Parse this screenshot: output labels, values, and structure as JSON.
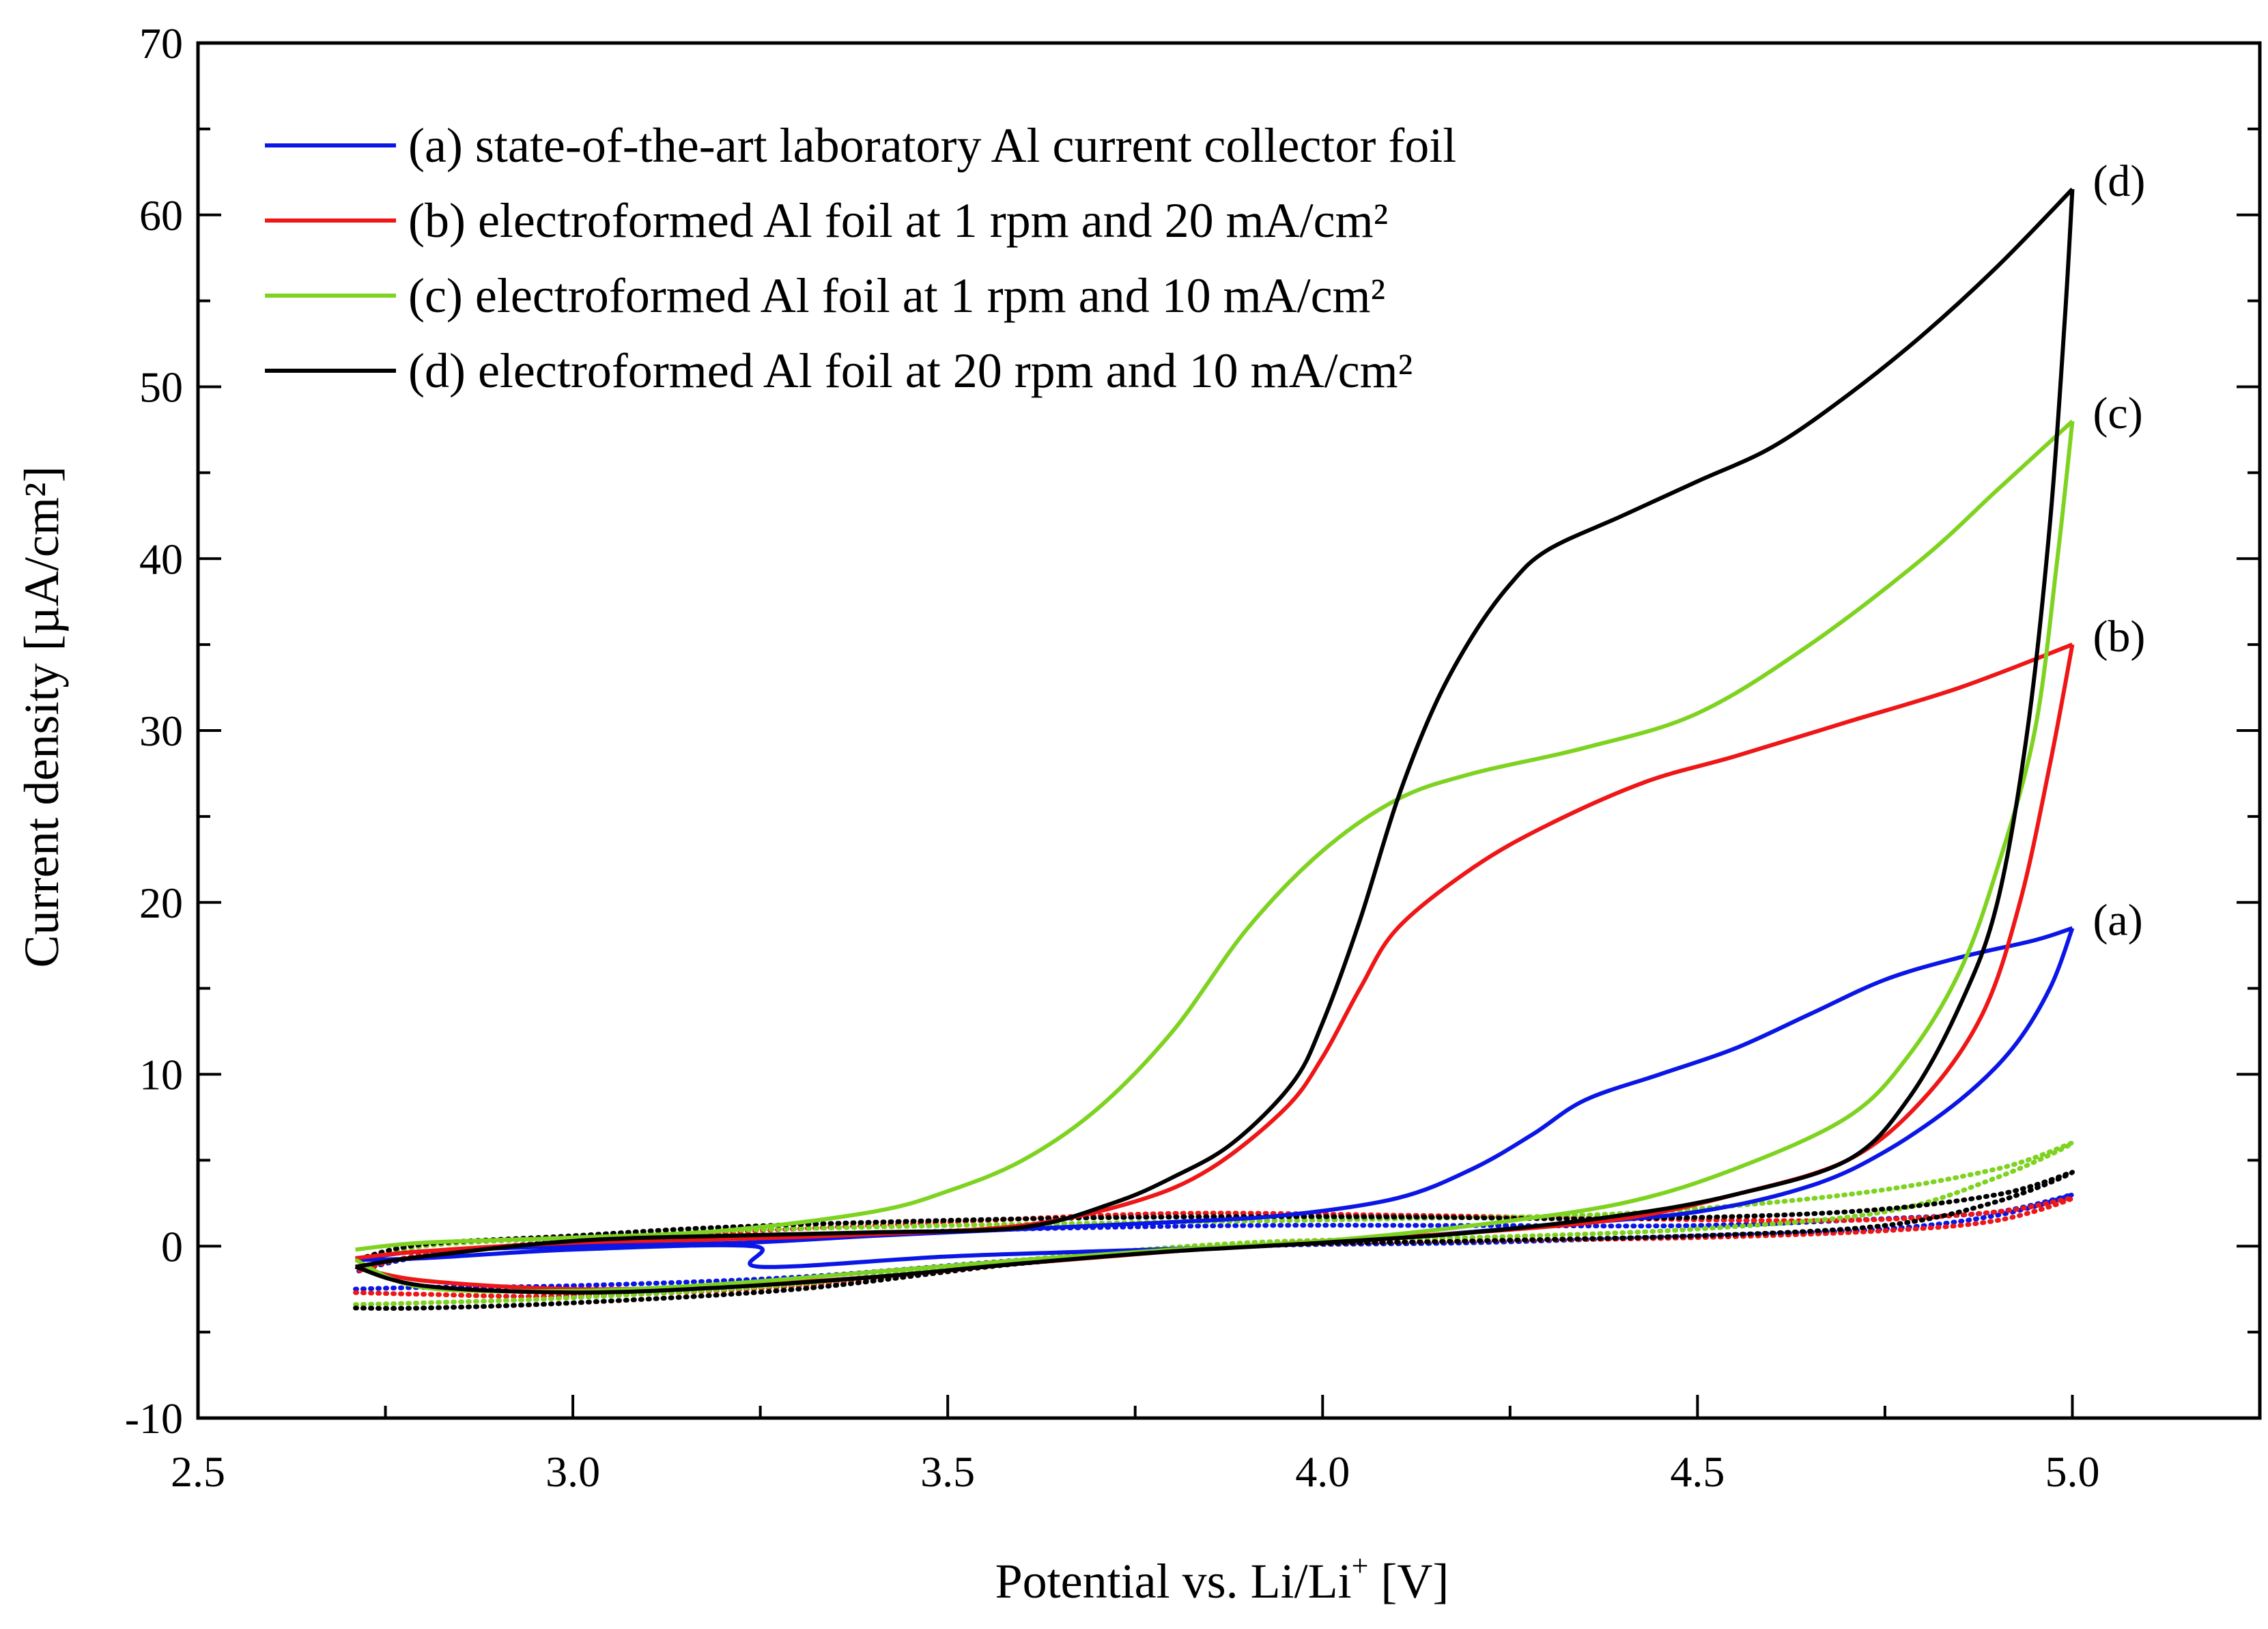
{
  "chart_data": {
    "type": "line",
    "title": "",
    "xlabel_main": "Potential vs. Li/Li",
    "xlabel_sup": "+",
    "xlabel_tail": " [V]",
    "ylabel": "Current density [µA/cm²]",
    "xlim": [
      2.5,
      5.25
    ],
    "ylim": [
      -10,
      70
    ],
    "xticks": [
      2.5,
      3.0,
      3.5,
      4.0,
      4.5,
      5.0
    ],
    "xtick_labels": [
      "2.5",
      "3.0",
      "3.5",
      "4.0",
      "4.5",
      "5.0"
    ],
    "yticks": [
      -10,
      0,
      10,
      20,
      30,
      40,
      50,
      60,
      70
    ],
    "ytick_labels": [
      "-10",
      "0",
      "10",
      "20",
      "30",
      "40",
      "50",
      "60",
      "70"
    ],
    "legend_position": "top-left",
    "grid": false,
    "series": [
      {
        "id": "a",
        "name": "(a) state-of-the-art laboratory Al current collector foil",
        "end_label": "(a)",
        "color": "#0a16e6",
        "forward": [
          [
            2.71,
            -0.8
          ],
          [
            2.8,
            -0.3
          ],
          [
            3.0,
            0.0
          ],
          [
            3.23,
            0.2
          ],
          [
            3.4,
            0.6
          ],
          [
            3.6,
            1.0
          ],
          [
            3.8,
            1.4
          ],
          [
            3.95,
            1.8
          ],
          [
            4.1,
            2.8
          ],
          [
            4.2,
            4.5
          ],
          [
            4.28,
            6.5
          ],
          [
            4.35,
            8.5
          ],
          [
            4.45,
            10.0
          ],
          [
            4.55,
            11.5
          ],
          [
            4.65,
            13.5
          ],
          [
            4.75,
            15.5
          ],
          [
            4.85,
            16.8
          ],
          [
            4.95,
            17.8
          ],
          [
            5.0,
            18.5
          ]
        ],
        "reverse": [
          [
            5.0,
            18.5
          ],
          [
            4.97,
            15.0
          ],
          [
            4.92,
            11.5
          ],
          [
            4.85,
            8.5
          ],
          [
            4.75,
            5.5
          ],
          [
            4.65,
            3.5
          ],
          [
            4.5,
            2.0
          ],
          [
            4.3,
            1.2
          ],
          [
            4.1,
            0.5
          ],
          [
            3.9,
            0.0
          ],
          [
            3.7,
            -0.3
          ],
          [
            3.5,
            -0.6
          ],
          [
            3.25,
            -1.2
          ],
          [
            3.24,
            0.0
          ],
          [
            3.0,
            -0.2
          ],
          [
            2.8,
            -0.7
          ],
          [
            2.71,
            -0.8
          ]
        ],
        "dotted": [
          [
            2.71,
            -2.5
          ],
          [
            2.8,
            -2.4
          ],
          [
            3.0,
            -2.3
          ],
          [
            3.3,
            -1.8
          ],
          [
            3.6,
            -0.8
          ],
          [
            3.9,
            0.0
          ],
          [
            4.2,
            0.2
          ],
          [
            4.5,
            0.6
          ],
          [
            4.75,
            1.0
          ],
          [
            4.9,
            1.8
          ],
          [
            5.0,
            3.0
          ],
          [
            4.9,
            2.0
          ],
          [
            4.75,
            1.6
          ],
          [
            4.5,
            1.2
          ],
          [
            4.2,
            1.2
          ],
          [
            3.9,
            1.2
          ],
          [
            3.6,
            1.0
          ],
          [
            3.3,
            0.6
          ],
          [
            3.0,
            0.3
          ],
          [
            2.8,
            -0.6
          ],
          [
            2.71,
            -1.5
          ]
        ]
      },
      {
        "id": "b",
        "name": "(b) electroformed Al foil at 1 rpm and 20 mA/cm²",
        "end_label": "(b)",
        "color": "#ee1616",
        "forward": [
          [
            2.71,
            -0.7
          ],
          [
            2.8,
            -0.3
          ],
          [
            3.0,
            0.2
          ],
          [
            3.2,
            0.4
          ],
          [
            3.4,
            0.7
          ],
          [
            3.6,
            1.2
          ],
          [
            3.75,
            2.6
          ],
          [
            3.85,
            4.5
          ],
          [
            3.95,
            8.0
          ],
          [
            4.0,
            11.0
          ],
          [
            4.05,
            15.0
          ],
          [
            4.1,
            18.5
          ],
          [
            4.2,
            22.0
          ],
          [
            4.3,
            24.5
          ],
          [
            4.43,
            27.0
          ],
          [
            4.55,
            28.5
          ],
          [
            4.7,
            30.5
          ],
          [
            4.85,
            32.5
          ],
          [
            5.0,
            35.0
          ]
        ],
        "reverse": [
          [
            5.0,
            35.0
          ],
          [
            4.97,
            28.0
          ],
          [
            4.93,
            20.0
          ],
          [
            4.88,
            13.5
          ],
          [
            4.8,
            8.5
          ],
          [
            4.7,
            5.0
          ],
          [
            4.55,
            3.0
          ],
          [
            4.4,
            1.6
          ],
          [
            4.2,
            0.8
          ],
          [
            4.0,
            0.3
          ],
          [
            3.8,
            -0.3
          ],
          [
            3.6,
            -1.0
          ],
          [
            3.4,
            -1.8
          ],
          [
            3.2,
            -2.3
          ],
          [
            3.0,
            -2.5
          ],
          [
            2.8,
            -2.0
          ],
          [
            2.71,
            -1.2
          ]
        ],
        "dotted": [
          [
            2.71,
            -2.7
          ],
          [
            2.8,
            -2.8
          ],
          [
            3.0,
            -2.9
          ],
          [
            3.3,
            -2.3
          ],
          [
            3.6,
            -1.0
          ],
          [
            3.9,
            0.0
          ],
          [
            4.2,
            0.3
          ],
          [
            4.5,
            0.5
          ],
          [
            4.75,
            0.9
          ],
          [
            4.9,
            1.5
          ],
          [
            5.0,
            2.8
          ],
          [
            4.9,
            2.0
          ],
          [
            4.7,
            1.5
          ],
          [
            4.4,
            1.6
          ],
          [
            4.1,
            1.8
          ],
          [
            3.8,
            1.9
          ],
          [
            3.5,
            1.4
          ],
          [
            3.2,
            0.8
          ],
          [
            3.0,
            0.3
          ],
          [
            2.8,
            -0.5
          ],
          [
            2.71,
            -1.5
          ]
        ]
      },
      {
        "id": "c",
        "name": "(c) electroformed Al foil at 1 rpm and 10 mA/cm²",
        "end_label": "(c)",
        "color": "#7ed321",
        "forward": [
          [
            2.71,
            -0.2
          ],
          [
            2.8,
            0.2
          ],
          [
            3.0,
            0.5
          ],
          [
            3.2,
            0.9
          ],
          [
            3.4,
            2.0
          ],
          [
            3.5,
            3.2
          ],
          [
            3.6,
            5.0
          ],
          [
            3.7,
            8.0
          ],
          [
            3.8,
            12.5
          ],
          [
            3.9,
            18.5
          ],
          [
            4.0,
            23.0
          ],
          [
            4.1,
            26.0
          ],
          [
            4.2,
            27.5
          ],
          [
            4.35,
            29.0
          ],
          [
            4.5,
            31.0
          ],
          [
            4.65,
            35.0
          ],
          [
            4.8,
            40.0
          ],
          [
            4.9,
            44.0
          ],
          [
            5.0,
            48.0
          ]
        ],
        "reverse": [
          [
            5.0,
            48.0
          ],
          [
            4.98,
            40.0
          ],
          [
            4.95,
            30.0
          ],
          [
            4.9,
            22.0
          ],
          [
            4.85,
            16.0
          ],
          [
            4.78,
            11.0
          ],
          [
            4.7,
            7.5
          ],
          [
            4.55,
            4.5
          ],
          [
            4.4,
            2.5
          ],
          [
            4.2,
            1.2
          ],
          [
            4.0,
            0.3
          ],
          [
            3.8,
            -0.2
          ],
          [
            3.6,
            -0.8
          ],
          [
            3.4,
            -1.5
          ],
          [
            3.2,
            -2.2
          ],
          [
            3.0,
            -2.6
          ],
          [
            2.8,
            -2.4
          ],
          [
            2.71,
            -0.8
          ]
        ],
        "dotted": [
          [
            2.71,
            -3.4
          ],
          [
            2.8,
            -3.3
          ],
          [
            3.0,
            -3.0
          ],
          [
            3.3,
            -2.2
          ],
          [
            3.6,
            -0.8
          ],
          [
            3.9,
            0.2
          ],
          [
            4.2,
            0.5
          ],
          [
            4.5,
            1.0
          ],
          [
            4.75,
            2.0
          ],
          [
            4.9,
            4.0
          ],
          [
            5.0,
            6.0
          ],
          [
            4.9,
            4.5
          ],
          [
            4.7,
            3.0
          ],
          [
            4.4,
            1.9
          ],
          [
            4.1,
            1.6
          ],
          [
            3.8,
            1.4
          ],
          [
            3.5,
            1.2
          ],
          [
            3.2,
            0.9
          ],
          [
            3.0,
            0.5
          ],
          [
            2.8,
            0.0
          ],
          [
            2.71,
            -1.0
          ]
        ]
      },
      {
        "id": "d",
        "name": "(d) electroformed Al foil at 20 rpm and 10 mA/cm²",
        "end_label": "(d)",
        "color": "#000000",
        "forward": [
          [
            2.71,
            -1.2
          ],
          [
            2.8,
            -0.6
          ],
          [
            3.0,
            0.3
          ],
          [
            3.2,
            0.6
          ],
          [
            3.4,
            0.8
          ],
          [
            3.6,
            1.1
          ],
          [
            3.72,
            2.5
          ],
          [
            3.8,
            4.0
          ],
          [
            3.88,
            6.0
          ],
          [
            3.96,
            9.5
          ],
          [
            4.0,
            13.0
          ],
          [
            4.05,
            19.0
          ],
          [
            4.1,
            26.0
          ],
          [
            4.15,
            31.5
          ],
          [
            4.2,
            35.5
          ],
          [
            4.25,
            38.5
          ],
          [
            4.3,
            40.5
          ],
          [
            4.4,
            42.5
          ],
          [
            4.5,
            44.5
          ],
          [
            4.6,
            46.5
          ],
          [
            4.7,
            49.5
          ],
          [
            4.8,
            53.0
          ],
          [
            4.9,
            57.0
          ],
          [
            5.0,
            61.5
          ]
        ],
        "reverse": [
          [
            5.0,
            61.5
          ],
          [
            4.99,
            54.0
          ],
          [
            4.97,
            42.0
          ],
          [
            4.94,
            30.0
          ],
          [
            4.9,
            20.0
          ],
          [
            4.85,
            14.0
          ],
          [
            4.78,
            8.5
          ],
          [
            4.7,
            5.0
          ],
          [
            4.55,
            3.0
          ],
          [
            4.4,
            1.8
          ],
          [
            4.2,
            0.8
          ],
          [
            4.0,
            0.2
          ],
          [
            3.8,
            -0.3
          ],
          [
            3.6,
            -1.0
          ],
          [
            3.4,
            -1.8
          ],
          [
            3.2,
            -2.4
          ],
          [
            3.0,
            -2.7
          ],
          [
            2.8,
            -2.3
          ],
          [
            2.71,
            -1.2
          ]
        ],
        "dotted": [
          [
            2.71,
            -3.6
          ],
          [
            2.8,
            -3.6
          ],
          [
            3.0,
            -3.3
          ],
          [
            3.3,
            -2.5
          ],
          [
            3.6,
            -1.0
          ],
          [
            3.9,
            0.0
          ],
          [
            4.2,
            0.3
          ],
          [
            4.5,
            0.6
          ],
          [
            4.75,
            1.2
          ],
          [
            4.9,
            2.6
          ],
          [
            5.0,
            4.3
          ],
          [
            4.9,
            3.0
          ],
          [
            4.7,
            2.0
          ],
          [
            4.4,
            1.6
          ],
          [
            4.1,
            1.7
          ],
          [
            3.8,
            1.7
          ],
          [
            3.5,
            1.5
          ],
          [
            3.2,
            1.1
          ],
          [
            3.0,
            0.6
          ],
          [
            2.8,
            0.1
          ],
          [
            2.71,
            -0.8
          ]
        ]
      }
    ]
  }
}
